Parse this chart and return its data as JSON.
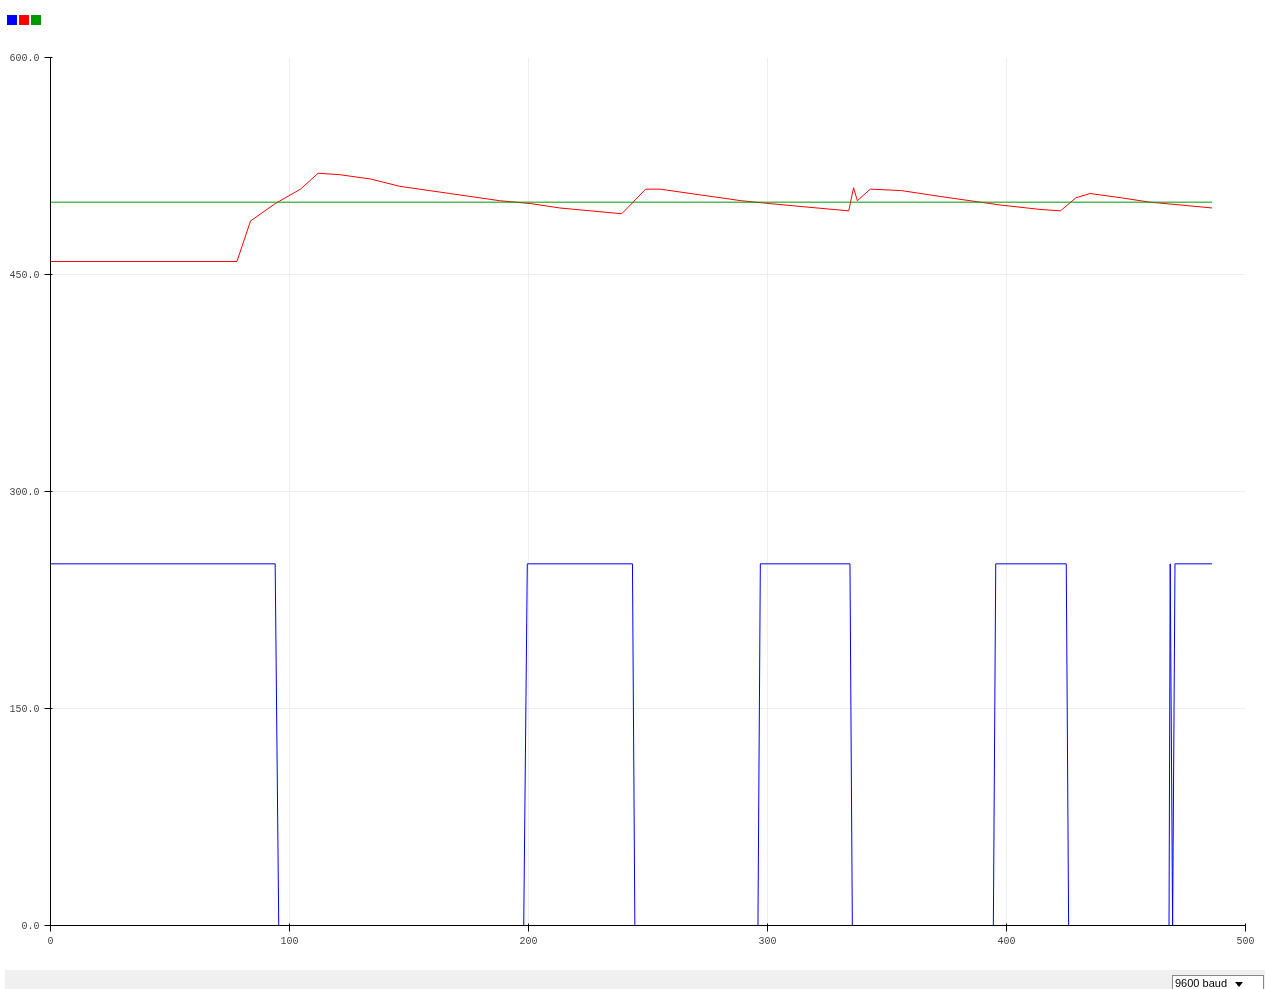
{
  "chart_data": {
    "type": "line",
    "xlim": [
      0,
      500
    ],
    "xticks": [
      0,
      100,
      200,
      300,
      400,
      500
    ],
    "ylim": [
      0,
      600
    ],
    "yticks": [
      {
        "value": 0,
        "label": "0.0"
      },
      {
        "value": 150,
        "label": "150.0"
      },
      {
        "value": 300,
        "label": "300.0"
      },
      {
        "value": 450,
        "label": "450.0"
      },
      {
        "value": 600,
        "label": "600.0"
      }
    ],
    "grid": true,
    "series": [
      {
        "color": "#0000ff",
        "x": [
          0,
          94,
          95.5,
          198,
          199.5,
          243.5,
          244.5,
          296,
          297,
          334.5,
          335.5,
          394.5,
          395.5,
          425,
          426,
          468,
          468.5,
          469.5,
          470.5,
          486
        ],
        "values": [
          250,
          250,
          0,
          0,
          250,
          250,
          0,
          0,
          250,
          250,
          0,
          0,
          250,
          250,
          0,
          0,
          250,
          0,
          250,
          250
        ]
      },
      {
        "color": "#ff0000",
        "x": [
          0,
          78,
          83.7,
          94,
          104.6,
          112,
          121,
          134,
          146,
          167,
          188,
          201,
          213,
          226,
          239,
          242,
          249,
          255,
          272,
          289,
          301,
          314,
          334,
          336,
          337.6,
          343,
          356,
          372,
          389,
          397.5,
          414,
          422.6,
          429,
          435,
          448,
          460,
          473,
          486
        ],
        "values": [
          459,
          459,
          487,
          499,
          509,
          520,
          519,
          516,
          511,
          506,
          501,
          499,
          496,
          494,
          492,
          497,
          509,
          509,
          505,
          501,
          499,
          497,
          494,
          510,
          501,
          509,
          508,
          504,
          500,
          498,
          495,
          494,
          503,
          506,
          503,
          500,
          498,
          496
        ]
      },
      {
        "color": "#009900",
        "x": [
          0,
          486
        ],
        "values": [
          500,
          500
        ]
      }
    ],
    "annotations": [
      "9600 baud"
    ]
  }
}
